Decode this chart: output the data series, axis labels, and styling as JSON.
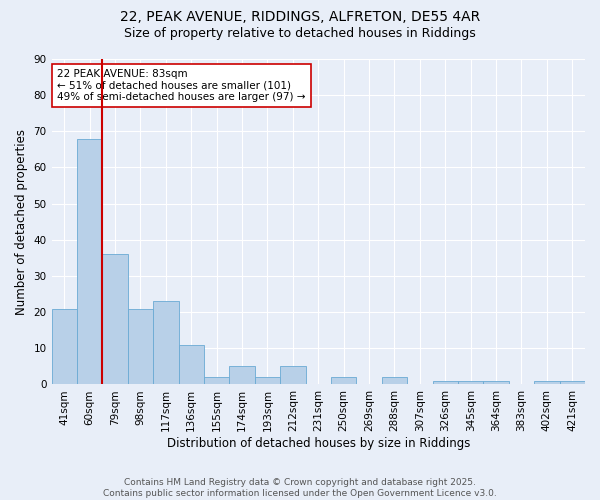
{
  "title_line1": "22, PEAK AVENUE, RIDDINGS, ALFRETON, DE55 4AR",
  "title_line2": "Size of property relative to detached houses in Riddings",
  "xlabel": "Distribution of detached houses by size in Riddings",
  "ylabel": "Number of detached properties",
  "categories": [
    "41sqm",
    "60sqm",
    "79sqm",
    "98sqm",
    "117sqm",
    "136sqm",
    "155sqm",
    "174sqm",
    "193sqm",
    "212sqm",
    "231sqm",
    "250sqm",
    "269sqm",
    "288sqm",
    "307sqm",
    "326sqm",
    "345sqm",
    "364sqm",
    "383sqm",
    "402sqm",
    "421sqm"
  ],
  "values": [
    21,
    68,
    36,
    21,
    23,
    11,
    2,
    5,
    2,
    5,
    0,
    2,
    0,
    2,
    0,
    1,
    1,
    1,
    0,
    1,
    1
  ],
  "bar_color": "#b8d0e8",
  "bar_edge_color": "#6aaad4",
  "vline_color": "#cc0000",
  "annotation_text": "22 PEAK AVENUE: 83sqm\n← 51% of detached houses are smaller (101)\n49% of semi-detached houses are larger (97) →",
  "annotation_box_color": "#ffffff",
  "annotation_box_edge_color": "#cc0000",
  "ylim": [
    0,
    90
  ],
  "yticks": [
    0,
    10,
    20,
    30,
    40,
    50,
    60,
    70,
    80,
    90
  ],
  "background_color": "#e8eef8",
  "grid_color": "#ffffff",
  "footer_line1": "Contains HM Land Registry data © Crown copyright and database right 2025.",
  "footer_line2": "Contains public sector information licensed under the Open Government Licence v3.0.",
  "title_fontsize": 10,
  "subtitle_fontsize": 9,
  "axis_label_fontsize": 8.5,
  "tick_fontsize": 7.5,
  "annotation_fontsize": 7.5,
  "footer_fontsize": 6.5
}
